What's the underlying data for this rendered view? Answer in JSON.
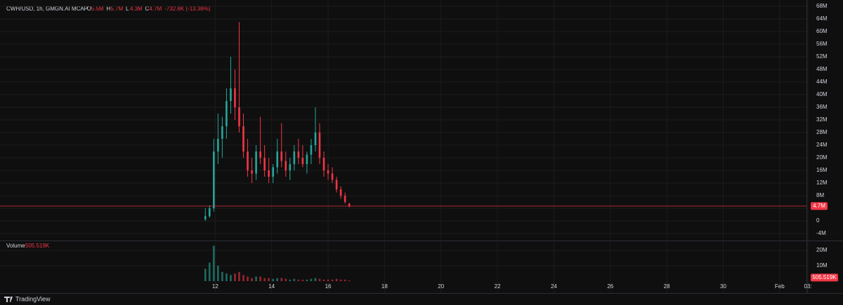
{
  "chart_data": {
    "type": "candlestick",
    "title": "CWH/USD, 1h, GMGN.AI MCAP",
    "ohlc_legend": [
      {
        "key": "O",
        "value": "5.5M"
      },
      {
        "key": "H",
        "value": "5.7M"
      },
      {
        "key": "L",
        "value": "4.3M"
      },
      {
        "key": "C",
        "value": "4.7M"
      }
    ],
    "change": "-732.8K (-13.38%)",
    "x": [
      11.65,
      11.8,
      11.95,
      12.1,
      12.25,
      12.4,
      12.55,
      12.7,
      12.85,
      13.0,
      13.15,
      13.3,
      13.45,
      13.6,
      13.75,
      13.9,
      14.05,
      14.2,
      14.35,
      14.5,
      14.65,
      14.8,
      14.95,
      15.1,
      15.25,
      15.4,
      15.55,
      15.7,
      15.85,
      16.0,
      16.15,
      16.3,
      16.45,
      16.6,
      16.75
    ],
    "open": [
      0.5,
      1.5,
      4,
      22,
      26,
      30,
      38,
      42,
      36,
      30,
      22,
      16,
      15,
      22,
      20,
      16,
      14,
      17,
      22,
      19,
      16,
      18,
      22,
      20,
      18,
      21,
      24,
      28,
      20,
      16,
      15,
      13,
      10,
      8,
      5.5
    ],
    "high": [
      4,
      5,
      26,
      34,
      33,
      42,
      52,
      48,
      63,
      34,
      26,
      20,
      24,
      33,
      24,
      20,
      18,
      26,
      31,
      22,
      20,
      24,
      26,
      24,
      22,
      26,
      36,
      31,
      22,
      18,
      17,
      14,
      11,
      9,
      5.7
    ],
    "low": [
      0,
      1,
      3,
      18,
      20,
      26,
      34,
      32,
      28,
      20,
      14,
      12,
      13,
      18,
      14,
      12,
      12,
      15,
      17,
      14,
      13,
      16,
      18,
      17,
      15,
      18,
      22,
      18,
      14,
      13,
      12,
      9,
      7,
      5.5,
      4.3
    ],
    "close": [
      1.5,
      4,
      22,
      26,
      30,
      38,
      42,
      36,
      30,
      22,
      16,
      15,
      22,
      20,
      16,
      14,
      17,
      22,
      19,
      16,
      18,
      22,
      20,
      18,
      21,
      24,
      28,
      20,
      16,
      15,
      13,
      10,
      8,
      6,
      4.7
    ],
    "up_color": "#26a69a",
    "down_color": "#f23645",
    "xlim": [
      4.375,
      32.95
    ],
    "xticks": [
      12,
      14,
      16,
      18,
      20,
      22,
      24,
      26,
      28,
      30,
      {
        "value": 32,
        "label": "Feb"
      },
      {
        "value": 33,
        "label": "03:"
      }
    ],
    "ylim": [
      -6.2,
      70
    ],
    "yticks": [
      {
        "value": -4,
        "label": "-4M"
      },
      {
        "value": 0,
        "label": "0"
      },
      {
        "value": 4,
        "label": "4M"
      },
      {
        "value": 8,
        "label": "8M"
      },
      {
        "value": 12,
        "label": "12M"
      },
      {
        "value": 16,
        "label": "16M"
      },
      {
        "value": 20,
        "label": "20M"
      },
      {
        "value": 24,
        "label": "24M"
      },
      {
        "value": 28,
        "label": "28M"
      },
      {
        "value": 32,
        "label": "32M"
      },
      {
        "value": 36,
        "label": "36M"
      },
      {
        "value": 40,
        "label": "40M"
      },
      {
        "value": 44,
        "label": "44M"
      },
      {
        "value": 48,
        "label": "48M"
      },
      {
        "value": 52,
        "label": "52M"
      },
      {
        "value": 56,
        "label": "56M"
      },
      {
        "value": 60,
        "label": "60M"
      },
      {
        "value": 64,
        "label": "64M"
      },
      {
        "value": 68,
        "label": "68M"
      }
    ],
    "grid": true,
    "volume": {
      "title": "Volume",
      "values": [
        8,
        12,
        23,
        10,
        6,
        5,
        4,
        5,
        6,
        4,
        3,
        2,
        3,
        3,
        2,
        2,
        1.5,
        2,
        2,
        1.5,
        1,
        1.5,
        1,
        1,
        1,
        1.5,
        2,
        1.5,
        1,
        1,
        1,
        1.5,
        1,
        1,
        0.505519
      ],
      "value_label": "505.519K",
      "ylim": [
        0,
        25.5
      ],
      "yticks": [
        {
          "value": 10,
          "label": "10M"
        },
        {
          "value": 20,
          "label": "20M"
        }
      ]
    },
    "footer": "TradingView"
  }
}
